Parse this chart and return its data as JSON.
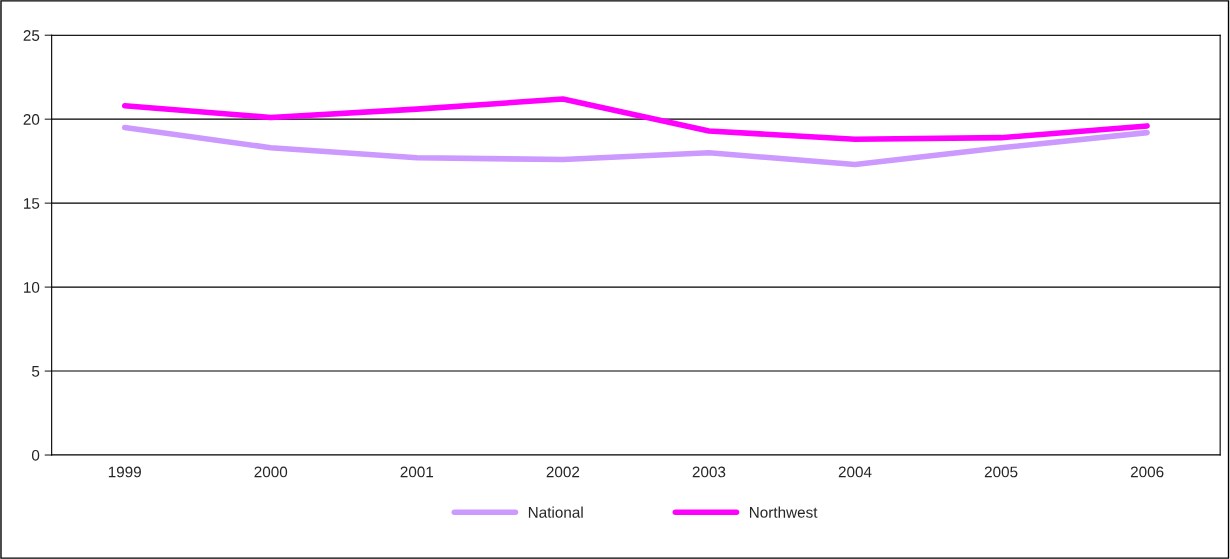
{
  "chart_data": {
    "type": "line",
    "categories": [
      "1999",
      "2000",
      "2001",
      "2002",
      "2003",
      "2004",
      "2005",
      "2006"
    ],
    "series": [
      {
        "name": "National",
        "color": "#cc99ff",
        "values": [
          19.5,
          18.3,
          17.7,
          17.6,
          18.0,
          17.3,
          18.3,
          19.2
        ]
      },
      {
        "name": "Northwest",
        "color": "#ff00ff",
        "values": [
          20.8,
          20.1,
          20.6,
          21.2,
          19.3,
          18.8,
          18.9,
          19.6
        ]
      }
    ],
    "ylim": [
      0,
      25
    ],
    "yticks": [
      0,
      5,
      10,
      15,
      20,
      25
    ],
    "grid": "y",
    "legend": "bottom",
    "marker": "none",
    "line_style": "solid"
  }
}
